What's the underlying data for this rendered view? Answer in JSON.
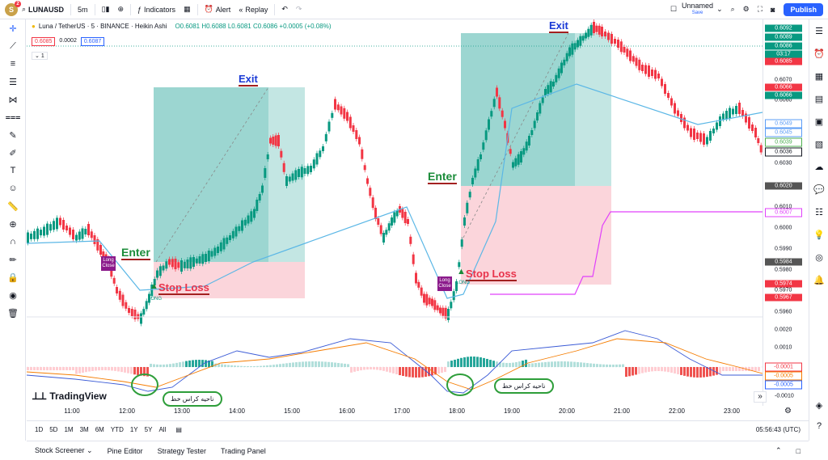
{
  "topbar": {
    "avatar_letter": "S",
    "avatar_badge": "2",
    "symbol": "LUNAUSD",
    "interval": "5m",
    "indicators_label": "Indicators",
    "alert_label": "Alert",
    "replay_label": "Replay",
    "layout_name": "Unnamed",
    "layout_status": "Save",
    "publish_label": "Publish"
  },
  "legend": {
    "title": "Luna / TetherUS · 5 · BINANCE · Heikin Ashi",
    "ohlc": "O0.6081 H0.6088 L0.6081 C0.6086 +0.0005 (+0.08%)",
    "sell_price": "0.6085",
    "spread": "0.0002",
    "buy_price": "0.6087",
    "collapse": "1"
  },
  "time_axis": [
    "11:00",
    "12:00",
    "13:00",
    "14:00",
    "15:00",
    "16:00",
    "17:00",
    "18:00",
    "19:00",
    "20:00",
    "21:00",
    "22:00",
    "23:00"
  ],
  "price_axis": [
    "0.6070",
    "0.6060",
    "0.6030",
    "0.6010",
    "0.6000",
    "0.5990",
    "0.5980",
    "0.5970",
    "0.5960"
  ],
  "price_tags": [
    {
      "value": "0.6092",
      "color": "#089981"
    },
    {
      "value": "0.6089",
      "color": "#089981"
    },
    {
      "value": "0.6086",
      "color": "#089981"
    },
    {
      "value": "03:17",
      "color": "#089981"
    },
    {
      "value": "0.6085",
      "color": "#f23645"
    },
    {
      "value": "0.6066",
      "color": "#f23645"
    },
    {
      "value": "0.6066",
      "color": "#089981"
    },
    {
      "value": "0.6049",
      "color": "#5b9cf6"
    },
    {
      "value": "0.6045",
      "color": "#5b9cf6"
    },
    {
      "value": "0.6039",
      "color": "#4caf50"
    },
    {
      "value": "0.6036",
      "color": "#131722"
    },
    {
      "value": "0.6020",
      "color": "#555555"
    },
    {
      "value": "0.6007",
      "color": "#e040fb"
    },
    {
      "value": "0.5984",
      "color": "#555555"
    },
    {
      "value": "0.5974",
      "color": "#f23645"
    },
    {
      "value": "0.5967",
      "color": "#f23645"
    }
  ],
  "macd_axis": [
    "0.0020",
    "0.0010",
    "-0.0001",
    "-0.0005",
    "-0.0005",
    "-0.0010"
  ],
  "annotations": {
    "enter": "Enter",
    "exit": "Exit",
    "stop_loss": "Stop Loss",
    "long_close": "Long Close",
    "long": "LONG",
    "cross_zone": "ناحیه کراس خط"
  },
  "brand": "TradingView",
  "timeframes": [
    "1D",
    "5D",
    "1M",
    "3M",
    "6M",
    "YTD",
    "1Y",
    "5Y",
    "All"
  ],
  "clock": "05:56:43 (UTC)",
  "bottom_panel": [
    "Stock Screener",
    "Pine Editor",
    "Strategy Tester",
    "Trading Panel"
  ]
}
